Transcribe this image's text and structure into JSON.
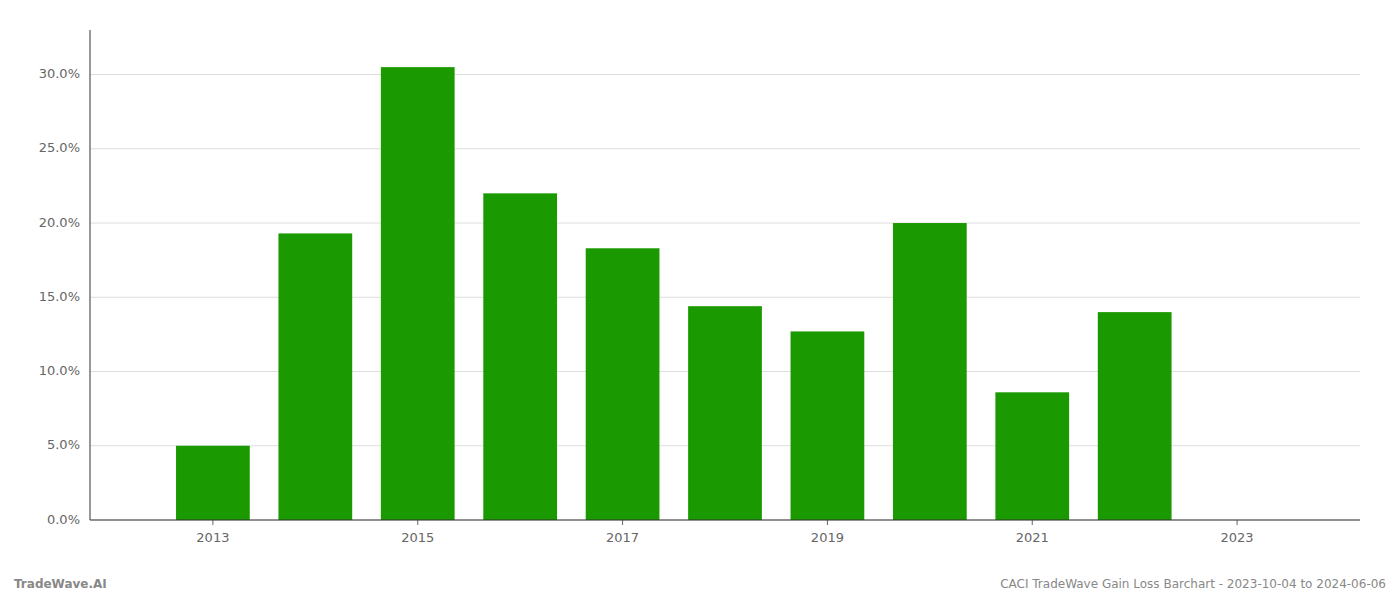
{
  "chart_data": {
    "type": "bar",
    "x": [
      2013,
      2014,
      2015,
      2016,
      2017,
      2018,
      2019,
      2020,
      2021,
      2022
    ],
    "values": [
      0.05,
      0.193,
      0.305,
      0.22,
      0.183,
      0.144,
      0.127,
      0.2,
      0.086,
      0.14
    ],
    "color": "#1a9a00",
    "xlim": [
      2011.8,
      2024.2
    ],
    "xticks": [
      2013,
      2015,
      2017,
      2019,
      2021,
      2023
    ],
    "ylim": [
      0,
      0.33
    ],
    "yticks": [
      {
        "value": 0.0,
        "label": "0.0%"
      },
      {
        "value": 0.05,
        "label": "5.0%"
      },
      {
        "value": 0.1,
        "label": "10.0%"
      },
      {
        "value": 0.15,
        "label": "15.0%"
      },
      {
        "value": 0.2,
        "label": "20.0%"
      },
      {
        "value": 0.25,
        "label": "25.0%"
      },
      {
        "value": 0.3,
        "label": "30.0%"
      }
    ],
    "grid": true,
    "annotations": [
      "TradeWave.AI",
      "CACI TradeWave Gain Loss Barchart - 2023-10-04 to 2024-06-06"
    ]
  }
}
